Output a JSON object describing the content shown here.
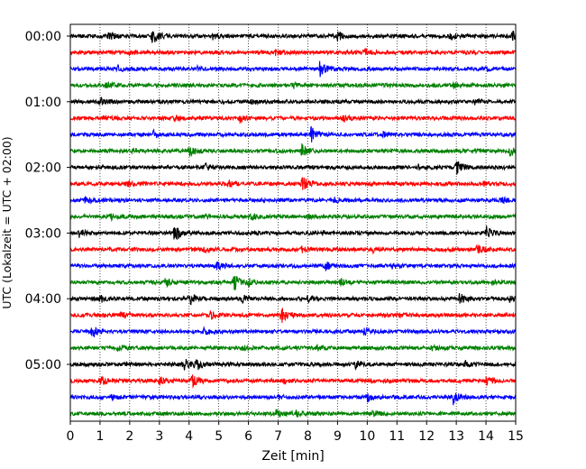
{
  "chart_data": {
    "type": "line",
    "title": "",
    "xlabel": "Zeit  [min]",
    "ylabel": "UTC (Lokalzeit = UTC + 02:00)",
    "xlim": [
      0,
      15
    ],
    "x_ticks": [
      "0",
      "1",
      "2",
      "3",
      "4",
      "5",
      "6",
      "7",
      "8",
      "9",
      "10",
      "11",
      "12",
      "13",
      "14",
      "15"
    ],
    "y_tick_labels": [
      "00:00",
      "01:00",
      "02:00",
      "03:00",
      "04:00",
      "05:00"
    ],
    "row_interval_minutes": 15,
    "rows_per_hour": 4,
    "row_count": 24,
    "grid": "vertical dotted lines at each minute",
    "legend": "none",
    "colors": [
      "#000000",
      "#ff0000",
      "#0000ff",
      "#008000"
    ],
    "color_cycle": "black, red, blue, green",
    "series": [
      {
        "row": 0,
        "start": "00:00",
        "events": [
          [
            1.3,
            0.5
          ],
          [
            2.75,
            1.0
          ],
          [
            4.8,
            0.3
          ],
          [
            9.0,
            0.5
          ],
          [
            12.8,
            0.4
          ],
          [
            14.9,
            0.5
          ]
        ]
      },
      {
        "row": 1,
        "start": "00:15",
        "events": [
          [
            2.0,
            0.2
          ],
          [
            6.9,
            0.3
          ],
          [
            9.9,
            0.4
          ]
        ]
      },
      {
        "row": 2,
        "start": "00:30",
        "events": [
          [
            1.6,
            0.3
          ],
          [
            4.2,
            0.3
          ],
          [
            8.4,
            1.0
          ],
          [
            14.0,
            0.2
          ]
        ]
      },
      {
        "row": 3,
        "start": "00:45",
        "events": [
          [
            1.2,
            0.5
          ],
          [
            7.5,
            0.2
          ],
          [
            12.9,
            0.3
          ]
        ]
      },
      {
        "row": 4,
        "start": "01:00",
        "events": [
          [
            1.0,
            0.5
          ],
          [
            6.1,
            0.3
          ],
          [
            13.6,
            0.4
          ]
        ]
      },
      {
        "row": 5,
        "start": "01:15",
        "events": [
          [
            1.1,
            0.3
          ],
          [
            3.5,
            0.3
          ],
          [
            5.7,
            0.4
          ],
          [
            9.2,
            0.3
          ]
        ]
      },
      {
        "row": 6,
        "start": "01:30",
        "events": [
          [
            2.8,
            0.4
          ],
          [
            8.1,
            1.0
          ],
          [
            10.5,
            0.3
          ]
        ]
      },
      {
        "row": 7,
        "start": "01:45",
        "events": [
          [
            2.1,
            0.3
          ],
          [
            4.0,
            0.6
          ],
          [
            7.8,
            0.8
          ],
          [
            14.8,
            0.5
          ]
        ]
      },
      {
        "row": 8,
        "start": "02:00",
        "events": [
          [
            4.5,
            0.5
          ],
          [
            11.7,
            0.3
          ],
          [
            13.0,
            0.8
          ]
        ]
      },
      {
        "row": 9,
        "start": "02:15",
        "events": [
          [
            1.9,
            0.3
          ],
          [
            5.3,
            0.3
          ],
          [
            7.8,
            1.0
          ],
          [
            13.9,
            0.3
          ]
        ]
      },
      {
        "row": 10,
        "start": "02:30",
        "events": [
          [
            0.5,
            0.5
          ],
          [
            8.9,
            0.3
          ],
          [
            14.5,
            0.3
          ]
        ]
      },
      {
        "row": 11,
        "start": "02:45",
        "events": [
          [
            1.3,
            0.4
          ],
          [
            4.5,
            0.3
          ],
          [
            6.1,
            0.4
          ],
          [
            8.0,
            0.2
          ]
        ]
      },
      {
        "row": 12,
        "start": "03:00",
        "events": [
          [
            0.3,
            0.4
          ],
          [
            3.5,
            1.0
          ],
          [
            8.5,
            0.2
          ],
          [
            14.0,
            0.8
          ]
        ]
      },
      {
        "row": 13,
        "start": "03:15",
        "events": [
          [
            4.5,
            0.3
          ],
          [
            7.8,
            0.3
          ],
          [
            10.2,
            0.3
          ],
          [
            13.7,
            0.5
          ]
        ]
      },
      {
        "row": 14,
        "start": "03:30",
        "events": [
          [
            4.9,
            0.5
          ],
          [
            8.6,
            0.5
          ],
          [
            10.8,
            0.3
          ]
        ]
      },
      {
        "row": 15,
        "start": "03:45",
        "events": [
          [
            3.2,
            0.5
          ],
          [
            5.5,
            1.0
          ],
          [
            6.0,
            0.4
          ],
          [
            9.1,
            0.4
          ],
          [
            14.2,
            0.3
          ]
        ]
      },
      {
        "row": 16,
        "start": "04:00",
        "events": [
          [
            1.0,
            0.4
          ],
          [
            4.0,
            0.9
          ],
          [
            5.8,
            0.4
          ],
          [
            8.0,
            0.3
          ],
          [
            13.1,
            0.6
          ],
          [
            14.8,
            0.3
          ]
        ]
      },
      {
        "row": 17,
        "start": "04:15",
        "events": [
          [
            1.7,
            0.3
          ],
          [
            4.7,
            0.4
          ],
          [
            7.1,
            0.9
          ],
          [
            11.0,
            0.3
          ]
        ]
      },
      {
        "row": 18,
        "start": "04:30",
        "events": [
          [
            0.7,
            1.0
          ],
          [
            4.5,
            0.3
          ],
          [
            9.9,
            0.4
          ]
        ]
      },
      {
        "row": 19,
        "start": "04:45",
        "events": [
          [
            1.6,
            0.3
          ],
          [
            5.8,
            0.3
          ],
          [
            8.3,
            0.3
          ],
          [
            12.2,
            0.3
          ]
        ]
      },
      {
        "row": 20,
        "start": "05:00",
        "events": [
          [
            3.8,
            0.9
          ],
          [
            4.2,
            0.8
          ],
          [
            9.6,
            0.4
          ],
          [
            13.3,
            0.5
          ]
        ]
      },
      {
        "row": 21,
        "start": "05:15",
        "events": [
          [
            1.0,
            0.5
          ],
          [
            3.0,
            0.5
          ],
          [
            4.1,
            1.0
          ],
          [
            7.2,
            0.3
          ],
          [
            14.0,
            0.5
          ]
        ]
      },
      {
        "row": 22,
        "start": "05:30",
        "events": [
          [
            1.4,
            0.3
          ],
          [
            7.0,
            0.3
          ],
          [
            10.0,
            0.5
          ],
          [
            12.9,
            0.8
          ]
        ]
      },
      {
        "row": 23,
        "start": "05:45",
        "events": [
          [
            6.9,
            0.5
          ],
          [
            7.6,
            0.4
          ],
          [
            10.2,
            0.3
          ]
        ]
      }
    ]
  }
}
